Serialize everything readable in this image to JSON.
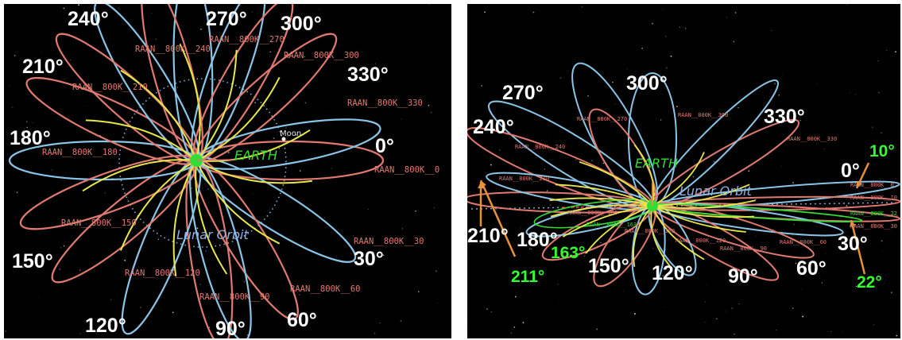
{
  "left_panel": {
    "angle_labels": [
      "240°",
      "270°",
      "300°",
      "330°",
      "210°",
      "180°",
      "0°",
      "150°",
      "30°",
      "120°",
      "90°",
      "60°"
    ],
    "orbit_tags": [
      "RAAN__800K__240",
      "RAAN__800K__270",
      "RAAN__800K__300",
      "RAAN__800K__330",
      "RAAN__800K__210",
      "RAAN__800K__180",
      "RAAN__800K__0",
      "RAAN__800K__150",
      "RAAN__800K__30",
      "RAAN__800K__120",
      "RAAN__800K__90",
      "RAAN__800K__60"
    ],
    "earth_label": "EARTH",
    "lunar_label": "Lunar Orbit",
    "moon_label": "Moon"
  },
  "right_panel": {
    "angle_labels": [
      "300°",
      "270°",
      "330°",
      "240°",
      "0°",
      "210°",
      "180°",
      "30°",
      "150°",
      "120°",
      "90°",
      "60°"
    ],
    "green_labels": [
      "10°",
      "163°",
      "211°",
      "22°"
    ],
    "orbit_tags": [
      "RAAN__800K__270",
      "RAAN__800K__300",
      "RAAN__800K__330",
      "RAAN__800K__240",
      "RAAN__800K__0",
      "RAAN__800K__10",
      "RAAN__800K__22",
      "RAAN__800K__30",
      "RAAN__800K__60",
      "RAAN__800K__90",
      "RAAN__800K__120",
      "RAAN__800K__150",
      "RAAN__800K__163",
      "RAAN__800K__180",
      "RAAN__800K__210"
    ],
    "earth_label": "EARTH",
    "lunar_label": "Lunar Orbit"
  },
  "colors": {
    "background": "#000000",
    "orbit_salmon": "#e07a70",
    "orbit_blue": "#8ac4e6",
    "transfer_yellow": "#e8e84a",
    "earth_green": "#33dd33",
    "lunar_orbit": "#7fb0d8",
    "arrow_orange": "#e8923a",
    "highlight_green": "#33ff33"
  }
}
